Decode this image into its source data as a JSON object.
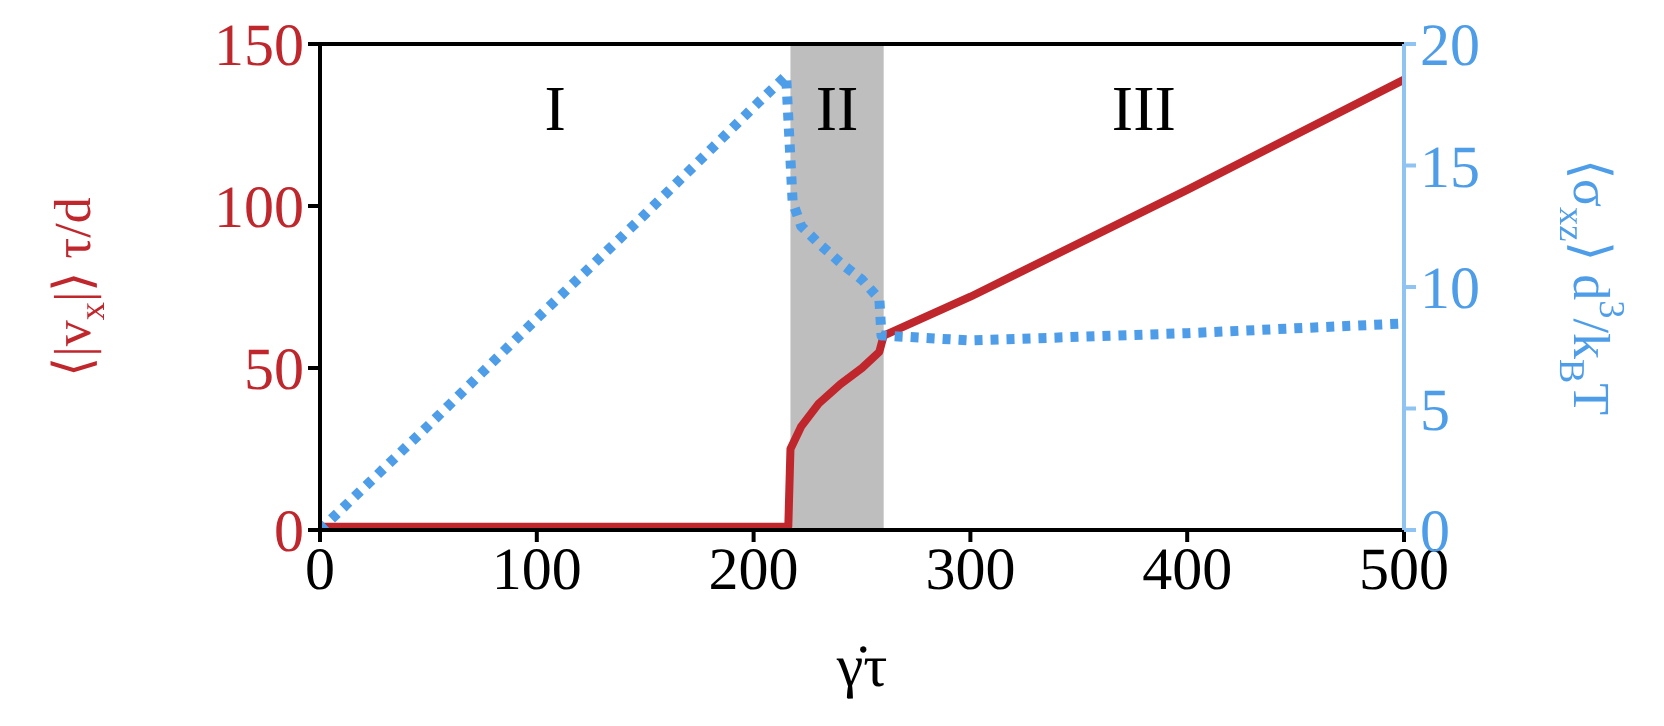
{
  "chart_data": {
    "type": "line",
    "xlabel": "γ̇τ",
    "ylabel": "⟨|v$_{x}$|⟩ τ/d",
    "y2label": "⟨σ$_{xz}$⟩ d$^{3}$/k$_{B}$T",
    "xlim": [
      0,
      500
    ],
    "xticks": [
      0,
      100,
      200,
      300,
      400,
      500
    ],
    "ylim": [
      0,
      150
    ],
    "yticks": [
      0,
      50,
      100,
      150
    ],
    "y2lim": [
      0,
      20
    ],
    "y2ticks": [
      0,
      5,
      10,
      15,
      20
    ],
    "marker": "none",
    "series": [
      {
        "color": "#c0272d",
        "line_style": "solid",
        "x": [
          0,
          100,
          200,
          216,
          217,
          222,
          230,
          240,
          250,
          258,
          260,
          300,
          400,
          500
        ],
        "values": [
          1,
          1,
          1,
          1,
          25,
          32,
          39,
          45,
          50,
          55,
          60,
          72,
          105,
          139
        ]
      },
      {
        "color": "#4e9de8",
        "line_style": "dotted",
        "axis": "y2",
        "x": [
          0,
          50,
          100,
          150,
          200,
          215,
          218,
          222,
          230,
          240,
          250,
          258,
          259,
          260,
          300,
          400,
          500
        ],
        "values": [
          0,
          4.3,
          8.7,
          13,
          17.4,
          18.7,
          13.5,
          12.5,
          11.8,
          11,
          10.3,
          9.5,
          8,
          8,
          7.8,
          8.1,
          8.5
        ]
      }
    ],
    "bands": [
      {
        "axis": "x",
        "from": 217,
        "to": 260,
        "color": "#bebebe"
      }
    ],
    "annotations": [
      "I",
      "II",
      "III"
    ]
  }
}
